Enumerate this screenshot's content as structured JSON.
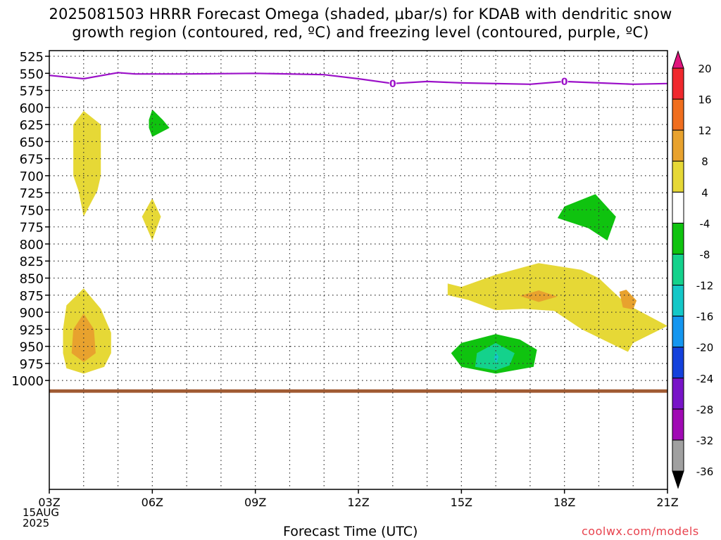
{
  "title_line1": "2025081503 HRRR Forecast Omega (shaded, μbar/s) for KDAB with dendritic snow",
  "title_line2": "growth region (contoured, red, ºC) and freezing level (contoured, purple, ºC)",
  "xlabel": "Forecast Time (UTC)",
  "credit": "coolwx.com/models",
  "date_label": [
    "15AUG",
    "2025"
  ],
  "chart_data": {
    "type": "heatmap",
    "title": "2025081503 HRRR Forecast Omega (shaded, μbar/s) for KDAB with dendritic snow growth region (contoured, red, ºC) and freezing level (contoured, purple, ºC)",
    "xlabel": "Forecast Time (UTC)",
    "ylabel": "",
    "x_ticks": [
      {
        "hour": 0,
        "label": "03Z"
      },
      {
        "hour": 3,
        "label": "06Z"
      },
      {
        "hour": 6,
        "label": "09Z"
      },
      {
        "hour": 9,
        "label": "12Z"
      },
      {
        "hour": 12,
        "label": "15Z"
      },
      {
        "hour": 15,
        "label": "18Z"
      },
      {
        "hour": 18,
        "label": "21Z"
      }
    ],
    "xlim_hours_from_03Z": [
      0,
      18
    ],
    "y_ticks_hPa": [
      525,
      550,
      575,
      600,
      625,
      650,
      675,
      700,
      725,
      750,
      775,
      800,
      825,
      850,
      875,
      900,
      925,
      950,
      975,
      1000
    ],
    "ylim_hPa": [
      1000,
      525
    ],
    "grid": true,
    "colorbar": {
      "labels": [
        "20",
        "16",
        "12",
        "8",
        "4",
        "-4",
        "-8",
        "-12",
        "-16",
        "-20",
        "-24",
        "-28",
        "-32",
        "-36"
      ],
      "colors": [
        "#e0147c",
        "#f0282d",
        "#f06e1e",
        "#e8a22e",
        "#e6d836",
        "#ffffff",
        "#0fc30f",
        "#14d28c",
        "#14c8c8",
        "#1496f0",
        "#1441dc",
        "#7814c8",
        "#a00ab4",
        "#a0a0a0",
        "#000000"
      ]
    },
    "freezing_level": {
      "label": "0",
      "color": "#9b10c8",
      "points": [
        [
          0,
          553
        ],
        [
          1,
          558
        ],
        [
          2,
          549
        ],
        [
          2.5,
          551
        ],
        [
          4,
          551
        ],
        [
          6,
          550
        ],
        [
          8,
          552
        ],
        [
          9,
          558
        ],
        [
          10,
          565
        ],
        [
          11,
          562
        ],
        [
          12,
          564
        ],
        [
          14,
          566
        ],
        [
          15,
          562
        ],
        [
          16,
          564
        ],
        [
          17,
          566
        ],
        [
          18,
          565
        ]
      ],
      "label_positions": [
        [
          10,
          565
        ],
        [
          15,
          562
        ]
      ]
    },
    "omega_regions": [
      {
        "level": "4 to 8",
        "color": "#e6d836",
        "points": [
          [
            1,
            605
          ],
          [
            1.5,
            625
          ],
          [
            1.5,
            700
          ],
          [
            1.4,
            722
          ],
          [
            1,
            760
          ],
          [
            0.85,
            722
          ],
          [
            0.7,
            700
          ],
          [
            0.7,
            625
          ]
        ]
      },
      {
        "level": "-8 to -4",
        "color": "#0fc30f",
        "points": [
          [
            3,
            603
          ],
          [
            3.3,
            618
          ],
          [
            3.5,
            630
          ],
          [
            3,
            643
          ],
          [
            2.9,
            630
          ],
          [
            2.9,
            618
          ]
        ]
      },
      {
        "level": "4 to 8",
        "color": "#e6d836",
        "points": [
          [
            3,
            733
          ],
          [
            3.25,
            760
          ],
          [
            3,
            795
          ],
          [
            2.7,
            760
          ]
        ]
      },
      {
        "level": "4 to 8",
        "color": "#e6d836",
        "points": [
          [
            1,
            865
          ],
          [
            1.5,
            895
          ],
          [
            1.8,
            930
          ],
          [
            1.8,
            960
          ],
          [
            1.6,
            980
          ],
          [
            1,
            990
          ],
          [
            0.5,
            982
          ],
          [
            0.4,
            960
          ],
          [
            0.4,
            925
          ],
          [
            0.5,
            890
          ]
        ]
      },
      {
        "level": "8 to 12",
        "color": "#e8a22e",
        "points": [
          [
            1,
            902
          ],
          [
            1.3,
            925
          ],
          [
            1.35,
            960
          ],
          [
            1,
            973
          ],
          [
            0.65,
            960
          ],
          [
            0.7,
            925
          ]
        ]
      },
      {
        "level": "-8 to -4",
        "color": "#0fc30f",
        "points": [
          [
            15.9,
            727
          ],
          [
            16.5,
            760
          ],
          [
            16.25,
            795
          ],
          [
            15.7,
            777
          ],
          [
            14.8,
            762
          ],
          [
            15,
            745
          ]
        ]
      },
      {
        "level": "4 to 8",
        "color": "#e6d836",
        "points": [
          [
            12,
            863
          ],
          [
            13,
            845
          ],
          [
            14.25,
            828
          ],
          [
            15.5,
            838
          ],
          [
            16,
            850
          ],
          [
            16.8,
            888
          ],
          [
            18,
            920
          ],
          [
            17,
            945
          ],
          [
            16.85,
            958
          ],
          [
            15.5,
            925
          ],
          [
            14.7,
            898
          ],
          [
            13.8,
            895
          ],
          [
            13,
            897
          ],
          [
            12.2,
            882
          ],
          [
            11.6,
            875
          ],
          [
            11.6,
            858
          ]
        ]
      },
      {
        "level": "8 to 12",
        "color": "#e8a22e",
        "points": [
          [
            14.25,
            868
          ],
          [
            13.7,
            876
          ],
          [
            14.25,
            885
          ],
          [
            14.8,
            877
          ]
        ]
      },
      {
        "level": "8 to 12",
        "color": "#e8a22e",
        "points": [
          [
            16.8,
            867
          ],
          [
            17.1,
            883
          ],
          [
            17,
            896
          ],
          [
            16.7,
            893
          ],
          [
            16.6,
            870
          ]
        ]
      },
      {
        "level": "-8 to -4",
        "color": "#0fc30f",
        "points": [
          [
            13,
            932
          ],
          [
            13.7,
            940
          ],
          [
            14.2,
            955
          ],
          [
            14.1,
            980
          ],
          [
            13,
            990
          ],
          [
            12,
            980
          ],
          [
            11.7,
            960
          ],
          [
            12,
            945
          ]
        ]
      },
      {
        "level": "-12 to -8",
        "color": "#14d28c",
        "points": [
          [
            13,
            945
          ],
          [
            13.55,
            960
          ],
          [
            13.4,
            978
          ],
          [
            13,
            985
          ],
          [
            12.4,
            980
          ],
          [
            12.45,
            960
          ]
        ]
      },
      {
        "level": "-16 to -12",
        "color": "#14c8c8",
        "points": [
          [
            13,
            958
          ],
          [
            13.08,
            965
          ],
          [
            13.02,
            975
          ],
          [
            12.95,
            968
          ]
        ]
      }
    ],
    "terrain": {
      "color": "#a05a32",
      "from_hPa": 1013,
      "to_hPa": 1018
    }
  }
}
